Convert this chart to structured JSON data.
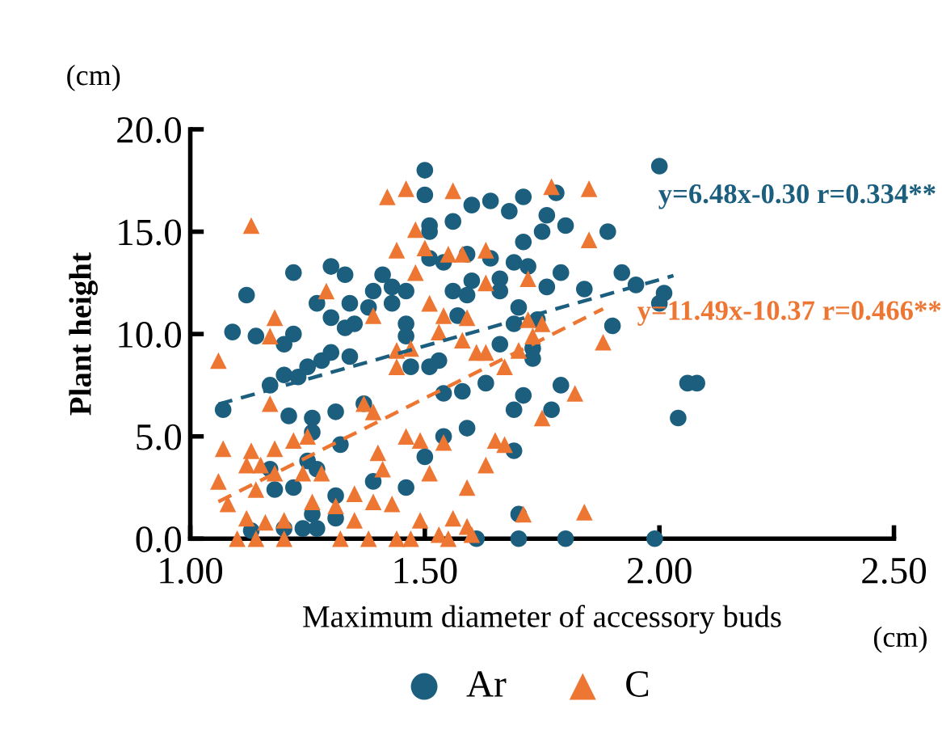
{
  "chart_data": {
    "type": "scatter",
    "xlabel": "Maximum diameter of accessory buds",
    "ylabel": "Plant height",
    "xlim": [
      1.0,
      2.5
    ],
    "ylim": [
      0.0,
      20.0
    ],
    "xticks": [
      {
        "value": 1.0,
        "label": "1.00"
      },
      {
        "value": 1.5,
        "label": "1.50"
      },
      {
        "value": 2.0,
        "label": "2.00"
      },
      {
        "value": 2.5,
        "label": "2.50"
      }
    ],
    "yticks": [
      {
        "value": 0,
        "label": "0.0"
      },
      {
        "value": 5,
        "label": "5.0"
      },
      {
        "value": 10,
        "label": "10.0"
      },
      {
        "value": 15,
        "label": "15.0"
      },
      {
        "value": 20,
        "label": "20.0"
      }
    ],
    "grid": false,
    "legend": "bottom",
    "annotations": [
      "(cm)",
      "(cm)",
      "y=6.48x-0.30 r=0.334**",
      "y=11.49x-10.37 r=0.466**"
    ],
    "series": [
      {
        "name": "Ar",
        "color": "#1b5e7e",
        "marker": "circle",
        "x": [
          1.07,
          1.09,
          1.12,
          1.14,
          1.22,
          1.2,
          1.22,
          1.17,
          1.2,
          1.23,
          1.25,
          1.28,
          1.3,
          1.34,
          1.27,
          1.3,
          1.3,
          1.33,
          1.34,
          1.33,
          1.35,
          1.38,
          1.39,
          1.41,
          1.43,
          1.43,
          1.46,
          1.46,
          1.46,
          1.5,
          1.5,
          1.51,
          1.47,
          1.51,
          1.21,
          1.26,
          1.26,
          1.31,
          1.37,
          1.32,
          1.17,
          1.18,
          1.22,
          1.25,
          1.27,
          1.39,
          1.46,
          1.31,
          1.26,
          1.13,
          1.2,
          1.24,
          1.27,
          1.31,
          1.5,
          1.6,
          1.64,
          1.71,
          1.78,
          1.68,
          1.76,
          1.75,
          1.8,
          1.89,
          1.71,
          1.56,
          1.51,
          1.51,
          1.59,
          1.54,
          1.64,
          1.69,
          1.72,
          1.79,
          1.6,
          1.66,
          1.56,
          1.59,
          1.66,
          1.76,
          1.84,
          1.92,
          1.95,
          2.01,
          2.0,
          1.7,
          1.57,
          1.74,
          1.69,
          1.9,
          1.66,
          1.73,
          1.73,
          1.53,
          1.63,
          1.54,
          1.58,
          1.79,
          1.71,
          1.69,
          1.77,
          1.59,
          1.54,
          1.69,
          1.7,
          1.61,
          1.7,
          1.8,
          1.99,
          2.0,
          2.06,
          2.08,
          2.04
        ],
        "values": [
          6.3,
          10.1,
          11.9,
          9.9,
          13.0,
          9.5,
          10.0,
          7.5,
          8.0,
          7.9,
          8.4,
          8.7,
          9.1,
          8.9,
          11.5,
          10.8,
          13.3,
          12.9,
          11.5,
          10.3,
          10.5,
          11.3,
          12.1,
          12.9,
          12.3,
          11.5,
          12.1,
          10.5,
          9.9,
          18.0,
          16.8,
          15.0,
          8.4,
          8.4,
          6.0,
          5.9,
          5.2,
          6.2,
          6.6,
          4.6,
          3.4,
          2.4,
          2.5,
          3.8,
          3.4,
          2.8,
          2.5,
          2.1,
          1.2,
          0.4,
          0.5,
          0.5,
          0.5,
          1.0,
          4.0,
          16.3,
          16.5,
          16.7,
          16.9,
          16.0,
          15.8,
          15.0,
          15.3,
          15.0,
          14.5,
          15.5,
          15.3,
          13.7,
          13.9,
          13.5,
          13.7,
          13.5,
          13.3,
          13.0,
          12.6,
          12.7,
          12.1,
          11.9,
          12.1,
          12.3,
          12.2,
          13.0,
          12.4,
          12.0,
          11.5,
          11.3,
          10.9,
          10.7,
          10.5,
          10.4,
          9.5,
          9.3,
          8.8,
          8.7,
          7.6,
          7.1,
          7.2,
          7.5,
          7.0,
          6.3,
          6.3,
          5.4,
          5.0,
          4.3,
          1.2,
          0.0,
          0.0,
          0.0,
          0.0,
          18.2,
          7.6,
          7.6,
          5.9
        ]
      },
      {
        "name": "C",
        "color": "#ed7633",
        "marker": "triangle",
        "x": [
          1.13,
          1.42,
          1.46,
          1.48,
          1.44,
          1.48,
          1.29,
          1.18,
          1.17,
          1.39,
          1.06,
          1.44,
          1.47,
          1.44,
          1.17,
          1.22,
          1.25,
          1.37,
          1.39,
          1.46,
          1.49,
          1.07,
          1.13,
          1.12,
          1.15,
          1.18,
          1.06,
          1.08,
          1.14,
          1.18,
          1.24,
          1.28,
          1.4,
          1.41,
          1.35,
          1.39,
          1.43,
          1.31,
          1.26,
          1.12,
          1.16,
          1.2,
          1.35,
          1.49,
          1.1,
          1.14,
          1.2,
          1.32,
          1.38,
          1.44,
          1.47,
          1.56,
          1.77,
          1.85,
          1.85,
          1.5,
          1.55,
          1.58,
          1.63,
          1.72,
          1.63,
          1.51,
          1.54,
          1.59,
          1.72,
          1.75,
          1.53,
          1.58,
          1.61,
          1.63,
          1.67,
          1.7,
          1.73,
          1.88,
          1.82,
          1.75,
          1.65,
          1.67,
          1.51,
          1.63,
          1.59,
          1.54,
          1.71,
          1.84,
          1.56,
          1.59,
          1.53,
          1.55,
          1.6
        ],
        "values": [
          15.3,
          16.7,
          17.1,
          15.1,
          14.1,
          13.0,
          12.1,
          10.8,
          9.9,
          10.9,
          8.7,
          9.2,
          9.3,
          8.4,
          6.6,
          4.8,
          5.0,
          6.6,
          6.2,
          5.0,
          4.8,
          4.4,
          4.3,
          3.6,
          3.6,
          4.4,
          2.8,
          1.7,
          2.4,
          3.2,
          3.2,
          3.2,
          4.2,
          3.4,
          2.2,
          1.8,
          1.7,
          1.6,
          1.8,
          1.0,
          0.8,
          0.9,
          0.9,
          0.9,
          0.0,
          0.0,
          0.0,
          0.0,
          0.0,
          0.0,
          0.0,
          17.0,
          17.2,
          17.1,
          14.6,
          14.2,
          13.9,
          13.9,
          14.1,
          12.7,
          12.5,
          11.5,
          10.9,
          10.8,
          10.7,
          10.5,
          10.1,
          9.7,
          9.1,
          9.1,
          8.4,
          9.2,
          9.9,
          9.6,
          7.1,
          5.9,
          4.8,
          4.6,
          3.2,
          3.6,
          2.5,
          4.7,
          1.2,
          1.3,
          1.0,
          0.6,
          0.2,
          0.0,
          0.2
        ]
      },
      {
        "type": "line",
        "color": "#1b5e7e",
        "line_style": "dashed",
        "x": [
          1.06,
          2.03
        ],
        "values": [
          6.57,
          12.85
        ]
      },
      {
        "type": "line",
        "color": "#ed7633",
        "line_style": "dashed",
        "x": [
          1.06,
          1.88
        ],
        "values": [
          1.81,
          11.23
        ]
      }
    ]
  }
}
